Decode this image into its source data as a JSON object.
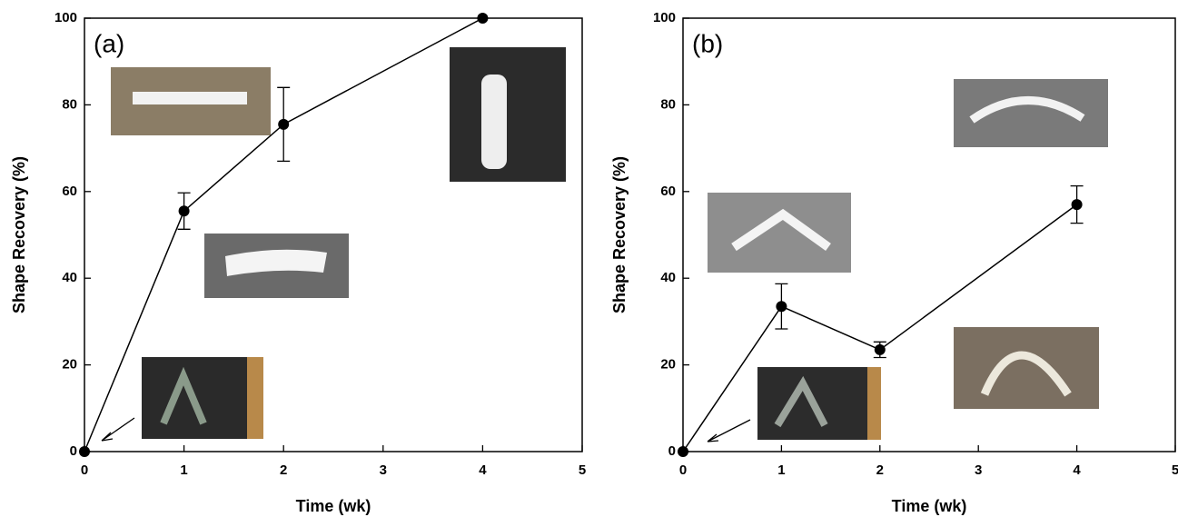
{
  "chart_data": [
    {
      "type": "line",
      "annotation": "(a)",
      "x_label": "Time (wk)",
      "y_label": "Shape Recovery (%)",
      "x": [
        0,
        1,
        2,
        4
      ],
      "values": [
        0,
        55.5,
        75.5,
        100
      ],
      "errors": [
        0,
        4.2,
        8.5,
        0
      ],
      "color": "#000000",
      "xlim": [
        0,
        5
      ],
      "xticks": [
        0,
        1,
        2,
        3,
        4,
        5
      ],
      "ylim": [
        0,
        100
      ],
      "yticks": [
        0,
        20,
        40,
        60,
        80,
        100
      ]
    },
    {
      "type": "line",
      "annotation": "(b)",
      "x_label": "Time (wk)",
      "y_label": "Shape Recovery (%)",
      "x": [
        0,
        1,
        2,
        4
      ],
      "values": [
        0,
        33.5,
        23.5,
        57
      ],
      "errors": [
        0,
        5.2,
        1.8,
        4.3
      ],
      "color": "#000000",
      "xlim": [
        0,
        5
      ],
      "xticks": [
        0,
        1,
        2,
        3,
        4,
        5
      ],
      "ylim": [
        0,
        100
      ],
      "yticks": [
        0,
        20,
        40,
        60,
        80,
        100
      ]
    }
  ]
}
